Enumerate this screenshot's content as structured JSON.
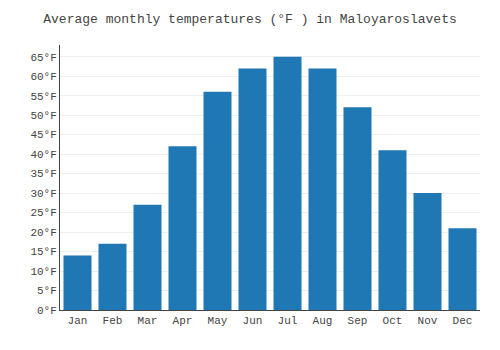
{
  "chart_data": {
    "type": "bar",
    "title": "Average monthly temperatures (°F ) in Maloyaroslavets",
    "categories": [
      "Jan",
      "Feb",
      "Mar",
      "Apr",
      "May",
      "Jun",
      "Jul",
      "Aug",
      "Sep",
      "Oct",
      "Nov",
      "Dec"
    ],
    "values": [
      14,
      17,
      27,
      42,
      56,
      62,
      65,
      62,
      52,
      41,
      30,
      21
    ],
    "ylim": [
      0,
      68
    ],
    "yticks": [
      {
        "value": 0,
        "label": "0°F"
      },
      {
        "value": 5,
        "label": "5°F"
      },
      {
        "value": 10,
        "label": "10°F"
      },
      {
        "value": 15,
        "label": "15°F"
      },
      {
        "value": 20,
        "label": "20°F"
      },
      {
        "value": 25,
        "label": "25°F"
      },
      {
        "value": 30,
        "label": "30°F"
      },
      {
        "value": 35,
        "label": "35°F"
      },
      {
        "value": 40,
        "label": "40°F"
      },
      {
        "value": 45,
        "label": "45°F"
      },
      {
        "value": 50,
        "label": "50°F"
      },
      {
        "value": 55,
        "label": "55°F"
      },
      {
        "value": 60,
        "label": "60°F"
      },
      {
        "value": 65,
        "label": "65°F"
      }
    ],
    "grid": true
  }
}
